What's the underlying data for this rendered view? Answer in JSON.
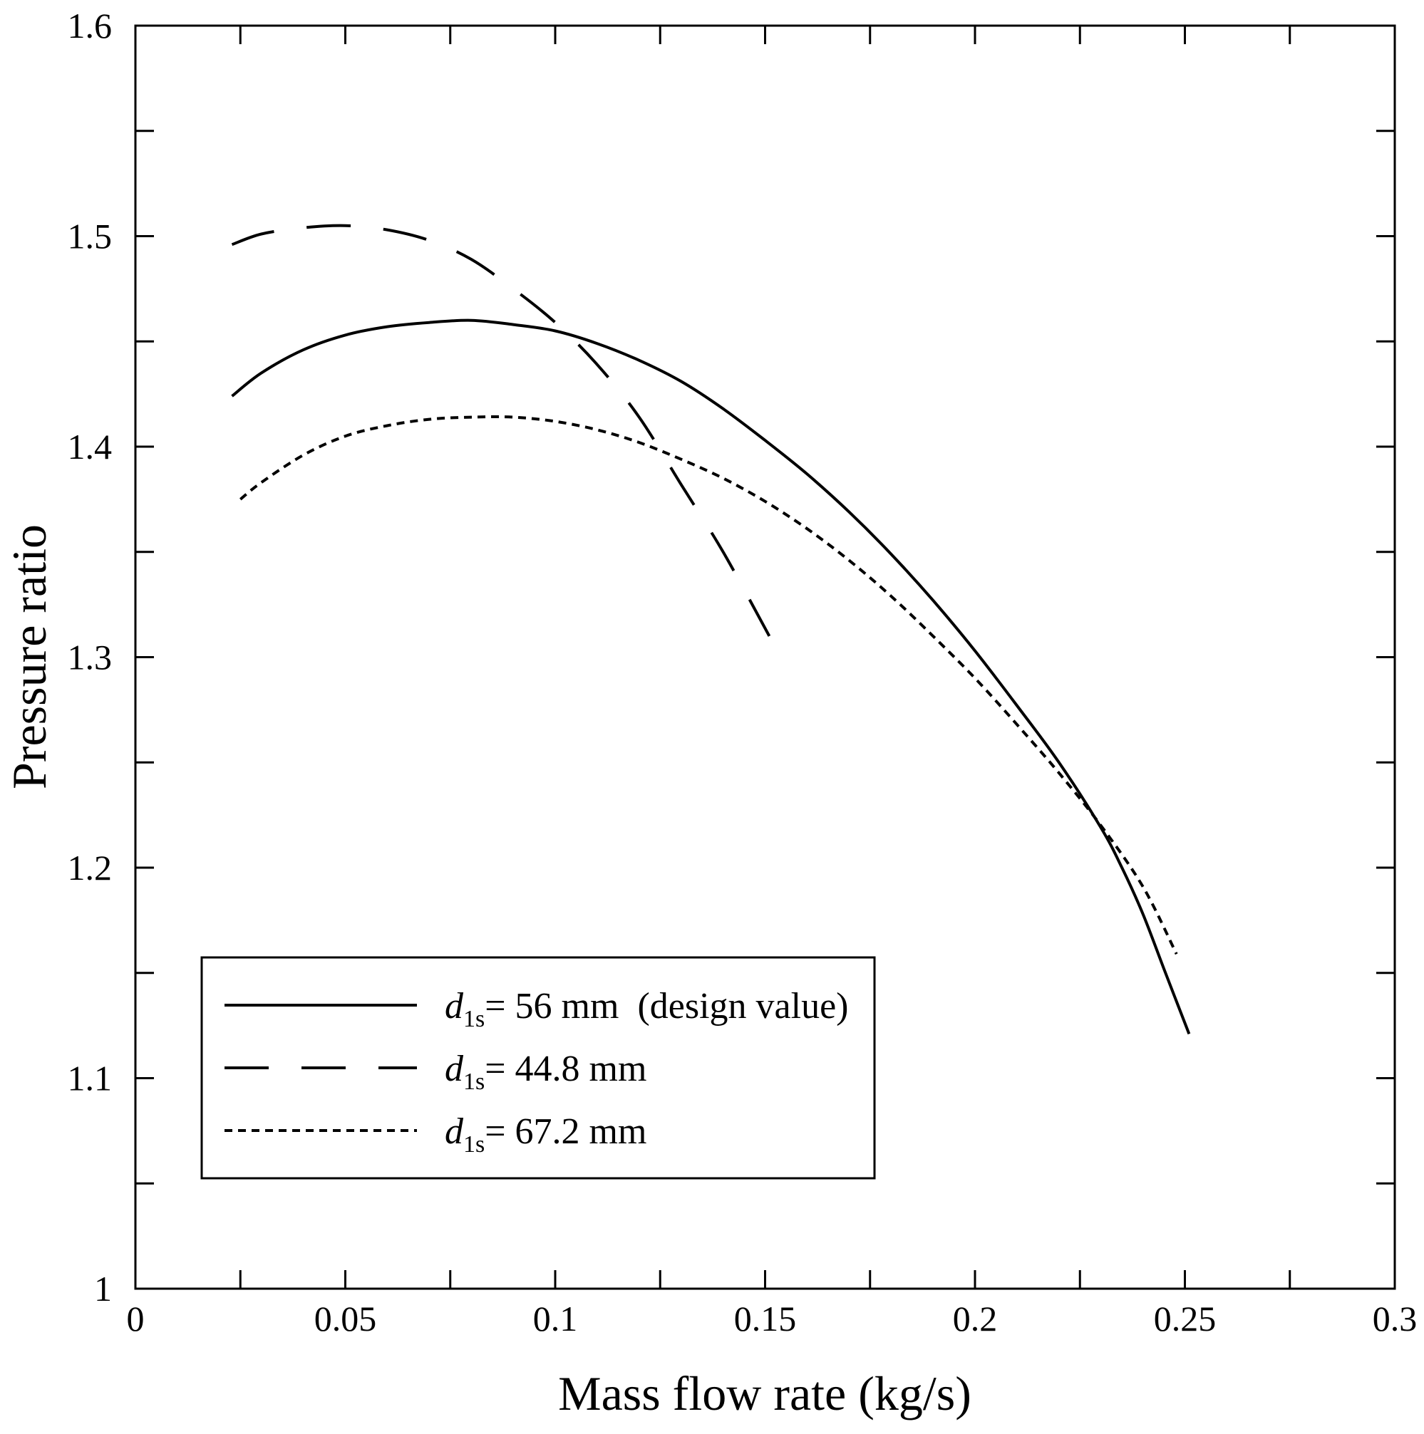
{
  "chart_data": {
    "type": "line",
    "title": "",
    "xlabel": "Mass flow rate (kg/s)",
    "ylabel": "Pressure ratio",
    "xlim": [
      0,
      0.3
    ],
    "ylim": [
      1,
      1.6
    ],
    "grid": false,
    "legend_position": "lower-left",
    "xtick_interval": 0.025,
    "ytick_interval": 0.05,
    "xticks": [
      {
        "value": 0,
        "label": "0"
      },
      {
        "value": 0.05,
        "label": "0.05"
      },
      {
        "value": 0.1,
        "label": "0.1"
      },
      {
        "value": 0.15,
        "label": "0.15"
      },
      {
        "value": 0.2,
        "label": "0.2"
      },
      {
        "value": 0.25,
        "label": "0.25"
      },
      {
        "value": 0.3,
        "label": "0.3"
      }
    ],
    "yticks": [
      {
        "value": 1.0,
        "label": "1"
      },
      {
        "value": 1.1,
        "label": "1.1"
      },
      {
        "value": 1.2,
        "label": "1.2"
      },
      {
        "value": 1.3,
        "label": "1.3"
      },
      {
        "value": 1.4,
        "label": "1.4"
      },
      {
        "value": 1.5,
        "label": "1.5"
      },
      {
        "value": 1.6,
        "label": "1.6"
      }
    ],
    "series": [
      {
        "legend": {
          "symbol": "d",
          "subscript": "1s",
          "text": "= 56 mm  (design value)"
        },
        "x": [
          0.023,
          0.03,
          0.04,
          0.05,
          0.06,
          0.07,
          0.08,
          0.09,
          0.1,
          0.11,
          0.12,
          0.13,
          0.14,
          0.15,
          0.16,
          0.17,
          0.18,
          0.19,
          0.2,
          0.21,
          0.22,
          0.23,
          0.235,
          0.24,
          0.245,
          0.251
        ],
        "y": [
          1.424,
          1.435,
          1.446,
          1.453,
          1.457,
          1.459,
          1.46,
          1.458,
          1.455,
          1.449,
          1.441,
          1.431,
          1.418,
          1.403,
          1.387,
          1.369,
          1.349,
          1.327,
          1.303,
          1.277,
          1.25,
          1.219,
          1.2,
          1.178,
          1.152,
          1.121
        ]
      },
      {
        "legend": {
          "symbol": "d",
          "subscript": "1s",
          "text": "= 44.8 mm"
        },
        "x": [
          0.023,
          0.03,
          0.04,
          0.05,
          0.06,
          0.07,
          0.08,
          0.09,
          0.1,
          0.11,
          0.12,
          0.13,
          0.14,
          0.151
        ],
        "y": [
          1.496,
          1.501,
          1.504,
          1.505,
          1.503,
          1.498,
          1.489,
          1.475,
          1.459,
          1.439,
          1.414,
          1.382,
          1.35,
          1.31
        ]
      },
      {
        "legend": {
          "symbol": "d",
          "subscript": "1s",
          "text": "= 67.2 mm"
        },
        "x": [
          0.025,
          0.03,
          0.04,
          0.05,
          0.06,
          0.07,
          0.08,
          0.09,
          0.1,
          0.11,
          0.12,
          0.13,
          0.14,
          0.15,
          0.16,
          0.17,
          0.18,
          0.19,
          0.2,
          0.21,
          0.22,
          0.23,
          0.24,
          0.248
        ],
        "y": [
          1.375,
          1.383,
          1.396,
          1.405,
          1.41,
          1.413,
          1.414,
          1.414,
          1.412,
          1.408,
          1.402,
          1.394,
          1.385,
          1.374,
          1.361,
          1.346,
          1.329,
          1.31,
          1.29,
          1.268,
          1.245,
          1.22,
          1.191,
          1.159
        ]
      }
    ]
  }
}
